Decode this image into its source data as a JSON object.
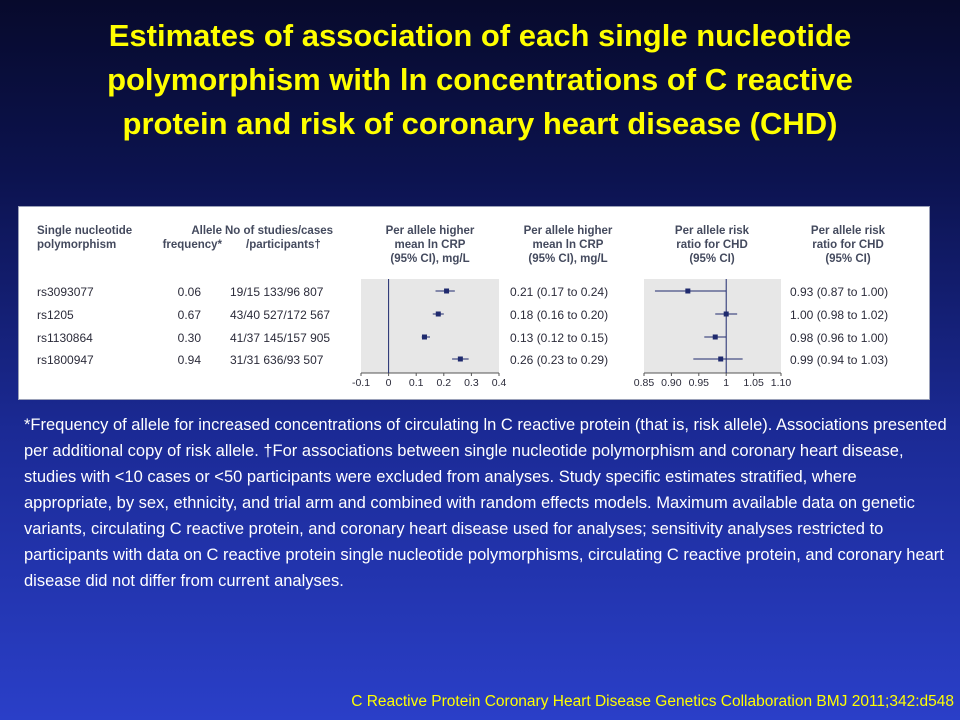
{
  "slide": {
    "title_lines": [
      "Estimates of association of each single nucleotide",
      "polymorphism with ln concentrations of C reactive",
      "protein and risk of coronary heart disease (CHD)"
    ],
    "footnote": "*Frequency of allele for increased concentrations of circulating ln C reactive protein (that is, risk allele). Associations presented per additional copy of risk allele. †For associations between single nucleotide polymorphism and coronary heart disease, studies with <10 cases or <50 participants were excluded from analyses. Study specific estimates stratified, where appropriate, by sex, ethnicity, and trial arm and combined with random effects models. Maximum available data on genetic variants, circulating C reactive protein, and coronary heart disease used for analyses; sensitivity analyses restricted to participants with data on C reactive protein single nucleotide polymorphisms, circulating C reactive protein, and coronary heart disease did not differ from current analyses.",
    "citation": "C Reactive Protein Coronary Heart Disease Genetics Collaboration  BMJ 2011;342:d548"
  },
  "table": {
    "headers": {
      "snp": [
        "Single nucleotide",
        "polymorphism"
      ],
      "freq": [
        "Allele",
        "frequency*"
      ],
      "studies": [
        "No of studies/cases",
        "/participants†"
      ],
      "crp_plot": [
        "Per allele higher",
        "mean ln CRP",
        "(95% CI), mg/L"
      ],
      "crp_text": [
        "Per allele higher",
        "mean ln CRP",
        "(95% CI), mg/L"
      ],
      "chd_plot": [
        "Per allele risk",
        "ratio for CHD",
        "(95% CI)"
      ],
      "chd_text": [
        "Per allele risk",
        "ratio for CHD",
        "(95% CI)"
      ]
    },
    "rows": [
      {
        "snp": "rs3093077",
        "freq": "0.06",
        "studies": "19/15 133/96 807",
        "crp_text": "0.21 (0.17 to 0.24)",
        "chd_text": "0.93 (0.87 to 1.00)"
      },
      {
        "snp": "rs1205",
        "freq": "0.67",
        "studies": "43/40 527/172 567",
        "crp_text": "0.18 (0.16 to 0.20)",
        "chd_text": "1.00 (0.98 to 1.02)"
      },
      {
        "snp": "rs1130864",
        "freq": "0.30",
        "studies": "41/37 145/157 905",
        "crp_text": "0.13 (0.12 to 0.15)",
        "chd_text": "0.98 (0.96 to 1.00)"
      },
      {
        "snp": "rs1800947",
        "freq": "0.94",
        "studies": "31/31 636/93 507",
        "crp_text": "0.26 (0.23 to 0.29)",
        "chd_text": "0.99 (0.94 to 1.03)"
      }
    ]
  },
  "chart_data": [
    {
      "type": "scatter",
      "categories": [
        "rs3093077",
        "rs1205",
        "rs1130864",
        "rs1800947"
      ],
      "estimates": [
        0.21,
        0.18,
        0.13,
        0.26
      ],
      "ci_low": [
        0.17,
        0.16,
        0.12,
        0.23
      ],
      "ci_high": [
        0.24,
        0.2,
        0.15,
        0.29
      ],
      "xlim": [
        -0.1,
        0.4
      ],
      "reference_line": 0,
      "xticks": [
        "-0.1",
        "0",
        "0.1",
        "0.2",
        "0.3",
        "0.4"
      ],
      "xtick_values": [
        -0.1,
        0,
        0.1,
        0.2,
        0.3,
        0.4
      ],
      "color": "#1f2a6e"
    },
    {
      "type": "scatter",
      "categories": [
        "rs3093077",
        "rs1205",
        "rs1130864",
        "rs1800947"
      ],
      "estimates": [
        0.93,
        1.0,
        0.98,
        0.99
      ],
      "ci_low": [
        0.87,
        0.98,
        0.96,
        0.94
      ],
      "ci_high": [
        1.0,
        1.02,
        1.0,
        1.03
      ],
      "xlim": [
        0.85,
        1.1
      ],
      "reference_line": 1,
      "xticks": [
        "0.85",
        "0.90",
        "0.95",
        "1",
        "1.05",
        "1.10"
      ],
      "xtick_values": [
        0.85,
        0.9,
        0.95,
        1,
        1.05,
        1.1
      ],
      "color": "#1f2a6e"
    }
  ]
}
